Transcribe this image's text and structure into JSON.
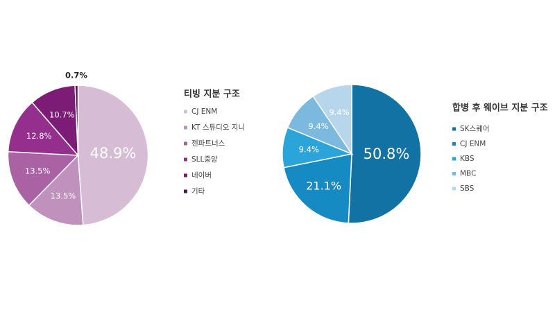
{
  "chart_data": [
    {
      "type": "pie",
      "title": "티빙 지분 구조",
      "categories": [
        "CJ ENM",
        "KT 스튜디오 지니",
        "젠파트너스",
        "SLL중앙",
        "네이버",
        "기타"
      ],
      "values": [
        48.9,
        13.5,
        13.5,
        12.8,
        10.7,
        0.7
      ],
      "value_labels": [
        "48.9%",
        "13.5%",
        "13.5%",
        "12.8%",
        "10.7%",
        "0.7%"
      ],
      "colors": [
        "#d6bcd4",
        "#c191bd",
        "#aa62a5",
        "#952f8e",
        "#7c1c77",
        "#5a1156"
      ]
    },
    {
      "type": "pie",
      "title": "합병 후 웨이브 지분 구조",
      "categories": [
        "SK스퀘어",
        "CJ ENM",
        "KBS",
        "MBC",
        "SBS"
      ],
      "values": [
        50.8,
        21.1,
        9.4,
        9.4,
        9.4
      ],
      "value_labels": [
        "50.8%",
        "21.1%",
        "9.4%",
        "9.4%",
        "9.4%"
      ],
      "colors": [
        "#1172a3",
        "#168bc3",
        "#2aa4d9",
        "#7bb9df",
        "#b8d6eb"
      ]
    }
  ]
}
